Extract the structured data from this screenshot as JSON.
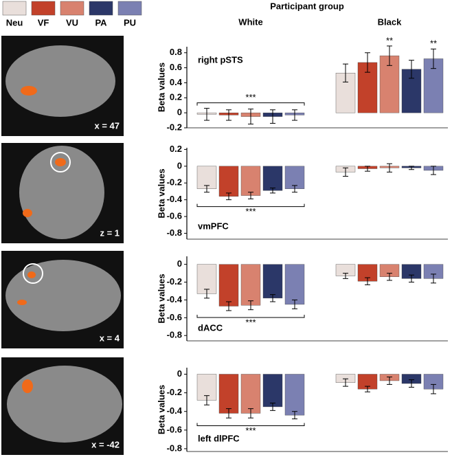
{
  "chart_data": [
    {
      "type": "bar",
      "title": "Participant group",
      "categories": [
        "White",
        "Black"
      ],
      "slice_label": "x = 47",
      "y_label": "Beta values",
      "region": "right pSTS",
      "ylim": [
        -0.2,
        0.88
      ],
      "yticks": [
        -0.2,
        0,
        0.2,
        0.4,
        0.6,
        0.8
      ],
      "series": [
        {
          "name": "Neu",
          "color": "#e9dfdb",
          "values": [
            -0.02,
            0.53
          ],
          "errors": [
            0.08,
            0.12
          ]
        },
        {
          "name": "VF",
          "color": "#c2412a",
          "values": [
            -0.03,
            0.67
          ],
          "errors": [
            0.07,
            0.13
          ]
        },
        {
          "name": "VU",
          "color": "#d8826f",
          "values": [
            -0.05,
            0.76
          ],
          "errors": [
            0.1,
            0.13
          ]
        },
        {
          "name": "PA",
          "color": "#2b3768",
          "values": [
            -0.05,
            0.58
          ],
          "errors": [
            0.09,
            0.12
          ]
        },
        {
          "name": "PU",
          "color": "#7b80b2",
          "values": [
            -0.03,
            0.72
          ],
          "errors": [
            0.07,
            0.13
          ]
        }
      ],
      "significance": [
        {
          "label": "***",
          "category": "White"
        },
        {
          "label": "**",
          "category": "Black",
          "series": "VU"
        },
        {
          "label": "**",
          "category": "Black",
          "series": "PU"
        }
      ]
    },
    {
      "type": "bar",
      "slice_label": "z = 1",
      "y_label": "Beta values",
      "region": "vmPFC",
      "ylim": [
        -0.87,
        0.22
      ],
      "yticks": [
        -0.8,
        -0.6,
        -0.4,
        -0.2,
        0,
        0.2
      ],
      "series": [
        {
          "color": "#e9dfdb",
          "values": [
            -0.27,
            -0.07
          ],
          "errors": [
            0.04,
            0.05
          ]
        },
        {
          "color": "#c2412a",
          "values": [
            -0.36,
            -0.03
          ],
          "errors": [
            0.04,
            0.03
          ]
        },
        {
          "color": "#d8826f",
          "values": [
            -0.35,
            -0.02
          ],
          "errors": [
            0.04,
            0.05
          ]
        },
        {
          "color": "#2b3768",
          "values": [
            -0.29,
            -0.02
          ],
          "errors": [
            0.03,
            0.02
          ]
        },
        {
          "color": "#7b80b2",
          "values": [
            -0.27,
            -0.05
          ],
          "errors": [
            0.04,
            0.05
          ]
        }
      ],
      "significance": [
        {
          "label": "***",
          "category": "White"
        }
      ]
    },
    {
      "type": "bar",
      "slice_label": "x = 4",
      "y_label": "Beta values",
      "region": "dACC",
      "ylim": [
        -0.86,
        0.09
      ],
      "yticks": [
        -0.8,
        -0.6,
        -0.4,
        -0.2,
        0
      ],
      "series": [
        {
          "color": "#e9dfdb",
          "values": [
            -0.33,
            -0.13
          ],
          "errors": [
            0.05,
            0.03
          ]
        },
        {
          "color": "#c2412a",
          "values": [
            -0.47,
            -0.19
          ],
          "errors": [
            0.05,
            0.04
          ]
        },
        {
          "color": "#d8826f",
          "values": [
            -0.46,
            -0.14
          ],
          "errors": [
            0.05,
            0.04
          ]
        },
        {
          "color": "#2b3768",
          "values": [
            -0.38,
            -0.16
          ],
          "errors": [
            0.04,
            0.04
          ]
        },
        {
          "color": "#7b80b2",
          "values": [
            -0.45,
            -0.16
          ],
          "errors": [
            0.05,
            0.05
          ]
        }
      ],
      "significance": [
        {
          "label": "***",
          "category": "White"
        }
      ]
    },
    {
      "type": "bar",
      "slice_label": "x = -42",
      "y_label": "Beta values",
      "region": "left dlPFC",
      "ylim": [
        -0.83,
        0.07
      ],
      "yticks": [
        -0.8,
        -0.6,
        -0.4,
        -0.2,
        0
      ],
      "series": [
        {
          "color": "#e9dfdb",
          "values": [
            -0.28,
            -0.09
          ],
          "errors": [
            0.05,
            0.04
          ]
        },
        {
          "color": "#c2412a",
          "values": [
            -0.42,
            -0.16
          ],
          "errors": [
            0.05,
            0.03
          ]
        },
        {
          "color": "#d8826f",
          "values": [
            -0.42,
            -0.07
          ],
          "errors": [
            0.05,
            0.04
          ]
        },
        {
          "color": "#2b3768",
          "values": [
            -0.35,
            -0.1
          ],
          "errors": [
            0.04,
            0.04
          ]
        },
        {
          "color": "#7b80b2",
          "values": [
            -0.44,
            -0.16
          ],
          "errors": [
            0.04,
            0.05
          ]
        }
      ],
      "significance": [
        {
          "label": "***",
          "category": "White"
        }
      ]
    }
  ]
}
